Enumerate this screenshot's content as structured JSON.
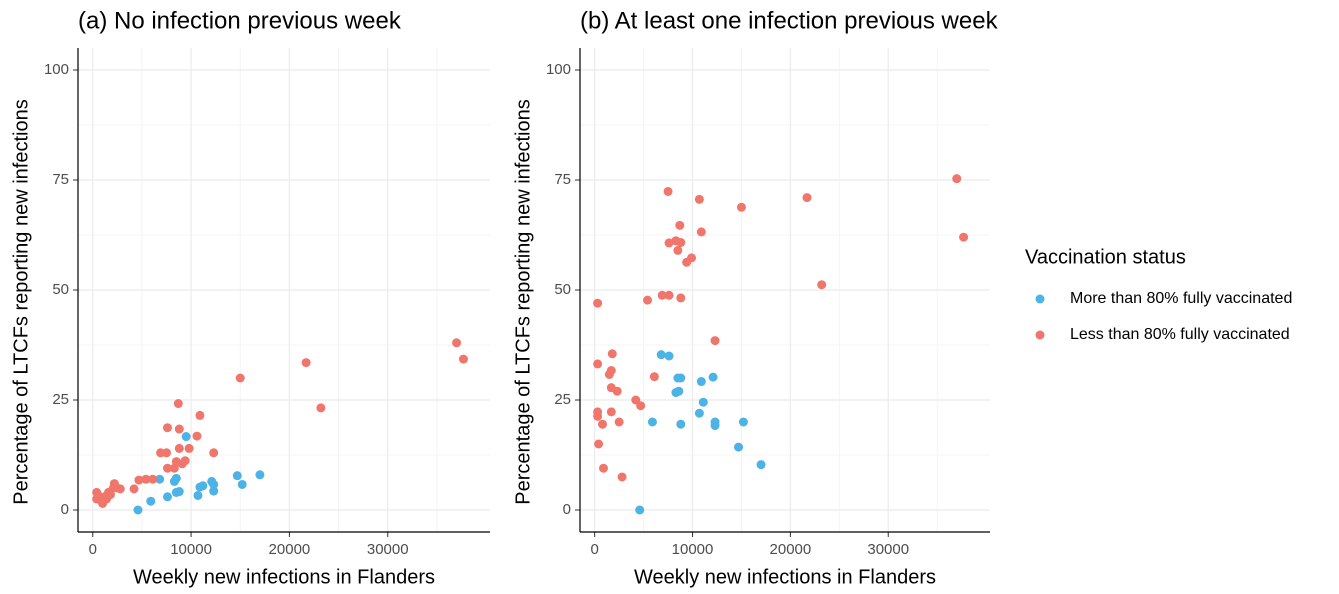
{
  "chart_data": [
    {
      "type": "scatter",
      "title": "(a) No infection previous week",
      "xlabel": "Weekly new infections in Flanders",
      "ylabel": "Percentage of LTCFs reporting new infections",
      "xlim": [
        -1500,
        40400
      ],
      "ylim": [
        -5,
        105
      ],
      "xticks": [
        0,
        10000,
        20000,
        30000
      ],
      "yticks": [
        0,
        25,
        50,
        75,
        100
      ],
      "grid": true,
      "series": [
        {
          "name": "More than 80% fully vaccinated",
          "color": "#4cb3e6",
          "x": [
            4600,
            5900,
            6800,
            7600,
            8300,
            8500,
            8500,
            8800,
            9500,
            10700,
            10900,
            11200,
            12100,
            12300,
            12300,
            14700,
            15200,
            17000
          ],
          "values": [
            0,
            2,
            7,
            3,
            6.5,
            7.2,
            4,
            4.2,
            16.7,
            3.3,
            5.2,
            5.5,
            6.5,
            4.3,
            5.8,
            7.8,
            5.8,
            8
          ]
        },
        {
          "name": "Less than 80% fully vaccinated",
          "color": "#f0766c",
          "x": [
            400,
            400,
            700,
            900,
            1000,
            1200,
            1400,
            1600,
            1800,
            2100,
            2200,
            2500,
            2800,
            4200,
            4700,
            5400,
            6100,
            6900,
            7500,
            7600,
            7600,
            8300,
            8500,
            8700,
            8800,
            8800,
            9100,
            9400,
            9800,
            10600,
            10900,
            12300,
            15000,
            21700,
            23200,
            37000,
            37700
          ],
          "values": [
            4,
            2.5,
            3,
            2,
            1.5,
            3,
            2.5,
            4,
            3.5,
            5,
            6,
            5,
            4.8,
            4.8,
            6.8,
            7,
            7,
            13,
            13,
            9.5,
            18.7,
            9.5,
            11,
            24.2,
            18.4,
            14,
            10.5,
            11.2,
            14,
            16.8,
            21.5,
            13,
            30,
            33.5,
            23.2,
            38,
            34.3
          ]
        }
      ]
    },
    {
      "type": "scatter",
      "title": "(b) At least one infection previous week",
      "xlabel": "Weekly new infections in Flanders",
      "ylabel": "Percentage of LTCFs reporting new infections",
      "xlim": [
        -1500,
        40400
      ],
      "ylim": [
        -5,
        105
      ],
      "xticks": [
        0,
        10000,
        20000,
        30000
      ],
      "yticks": [
        0,
        25,
        50,
        75,
        100
      ],
      "grid": true,
      "series": [
        {
          "name": "More than 80% fully vaccinated",
          "color": "#4cb3e6",
          "x": [
            4600,
            5900,
            6800,
            7600,
            8300,
            8500,
            8600,
            8800,
            8800,
            10700,
            10900,
            11100,
            12100,
            12300,
            12300,
            14700,
            15200,
            17000
          ],
          "values": [
            0,
            20,
            35.3,
            35,
            26.7,
            30,
            27,
            30,
            19.5,
            22,
            29.2,
            24.5,
            30.2,
            20,
            19.2,
            14.3,
            20,
            10.3
          ]
        },
        {
          "name": "Less than 80% fully vaccinated",
          "color": "#f0766c",
          "x": [
            300,
            300,
            300,
            300,
            400,
            800,
            900,
            1500,
            1700,
            1700,
            1700,
            1800,
            2300,
            2500,
            2800,
            4200,
            4700,
            5400,
            6100,
            6900,
            7500,
            7600,
            7600,
            8300,
            8500,
            8700,
            8800,
            8800,
            9400,
            9900,
            10700,
            10900,
            12300,
            15000,
            21700,
            23200,
            37000,
            37700
          ],
          "values": [
            47,
            33.2,
            22.3,
            21.3,
            15,
            19.5,
            9.5,
            30.8,
            27.8,
            31.7,
            22.3,
            35.5,
            27,
            20,
            7.5,
            25,
            23.7,
            47.7,
            30.3,
            48.8,
            72.4,
            60.7,
            48.8,
            61.2,
            59,
            64.7,
            48.2,
            60.8,
            56.3,
            57.3,
            70.6,
            63.2,
            38.5,
            68.8,
            71,
            51.2,
            75.3,
            62
          ]
        }
      ]
    }
  ],
  "legend_title": "Vaccination status"
}
